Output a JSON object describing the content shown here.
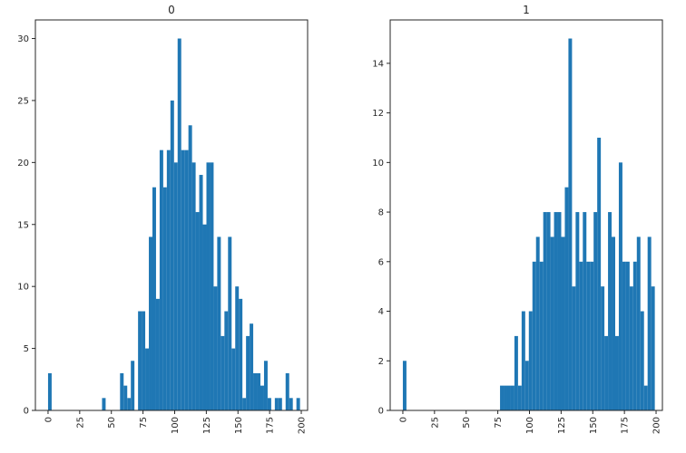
{
  "figure": {
    "bar_color": "#1f77b4",
    "axis_color": "#262626",
    "background": "#ffffff"
  },
  "chart_data": [
    {
      "type": "bar",
      "title": "0",
      "xlabel": "",
      "ylabel": "",
      "bins": 70,
      "bin_range": [
        0,
        199
      ],
      "xlim": [
        -10,
        205
      ],
      "ylim": [
        0,
        31.5
      ],
      "xticks": [
        0,
        25,
        50,
        75,
        100,
        125,
        150,
        175,
        200
      ],
      "yticks": [
        0,
        5,
        10,
        15,
        20,
        25,
        30
      ],
      "grid": false,
      "legend": null,
      "values": [
        3,
        0,
        0,
        0,
        0,
        0,
        0,
        0,
        0,
        0,
        0,
        0,
        0,
        0,
        0,
        1,
        0,
        0,
        0,
        0,
        3,
        2,
        1,
        4,
        0,
        8,
        8,
        5,
        14,
        18,
        9,
        21,
        18,
        21,
        25,
        20,
        30,
        21,
        21,
        23,
        20,
        16,
        19,
        15,
        20,
        20,
        10,
        14,
        6,
        8,
        14,
        5,
        10,
        9,
        1,
        6,
        7,
        3,
        3,
        2,
        4,
        1,
        0,
        1,
        1,
        0,
        3,
        1,
        0,
        1
      ]
    },
    {
      "type": "bar",
      "title": "1",
      "xlabel": "",
      "ylabel": "",
      "bins": 70,
      "bin_range": [
        0,
        199
      ],
      "xlim": [
        -10,
        205
      ],
      "ylim": [
        0,
        15.75
      ],
      "xticks": [
        0,
        25,
        50,
        75,
        100,
        125,
        150,
        175,
        200
      ],
      "yticks": [
        0,
        2,
        4,
        6,
        8,
        10,
        12,
        14
      ],
      "grid": false,
      "legend": null,
      "values": [
        2,
        0,
        0,
        0,
        0,
        0,
        0,
        0,
        0,
        0,
        0,
        0,
        0,
        0,
        0,
        0,
        0,
        0,
        0,
        0,
        0,
        0,
        0,
        0,
        0,
        0,
        0,
        1,
        1,
        1,
        1,
        3,
        1,
        4,
        2,
        4,
        6,
        7,
        6,
        8,
        8,
        7,
        8,
        8,
        7,
        9,
        15,
        5,
        8,
        6,
        8,
        6,
        6,
        8,
        11,
        5,
        3,
        8,
        7,
        3,
        10,
        6,
        6,
        5,
        6,
        8,
        3,
        8,
        8,
        3
      ]
    }
  ],
  "extra_bars_right": [
    7,
    4,
    1,
    7,
    5
  ]
}
